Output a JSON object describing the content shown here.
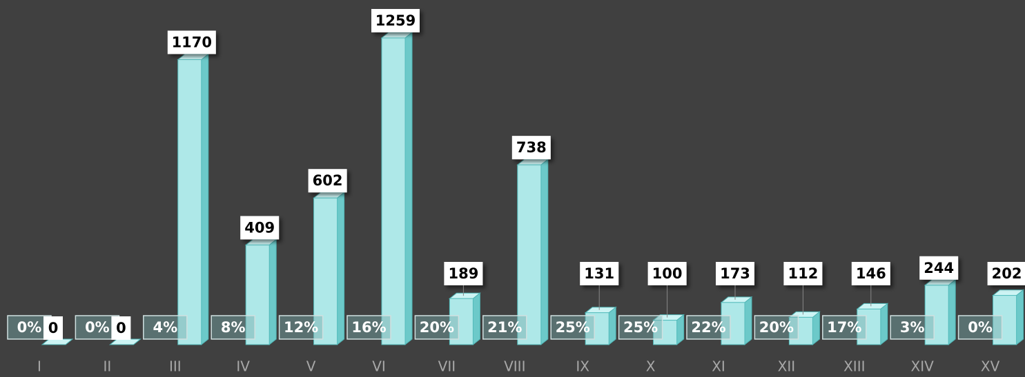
{
  "chart_data": {
    "type": "bar",
    "categories": [
      "I",
      "II",
      "III",
      "IV",
      "V",
      "VI",
      "VII",
      "VIII",
      "IX",
      "X",
      "XI",
      "XII",
      "XIII",
      "XIV",
      "XV"
    ],
    "series": [
      {
        "color": "#aee8e8",
        "values": [
          0,
          0,
          1170,
          409,
          602,
          1259,
          189,
          738,
          131,
          100,
          173,
          112,
          146,
          244,
          202
        ]
      },
      {
        "values": [
          0,
          0,
          4,
          8,
          12,
          16,
          20,
          21,
          25,
          25,
          22,
          20,
          17,
          3,
          0
        ],
        "value_labels": [
          "0%",
          "0%",
          "4%",
          "8%",
          "12%",
          "16%",
          "20%",
          "21%",
          "25%",
          "25%",
          "22%",
          "20%",
          "17%",
          "3%",
          "0%"
        ]
      }
    ]
  }
}
